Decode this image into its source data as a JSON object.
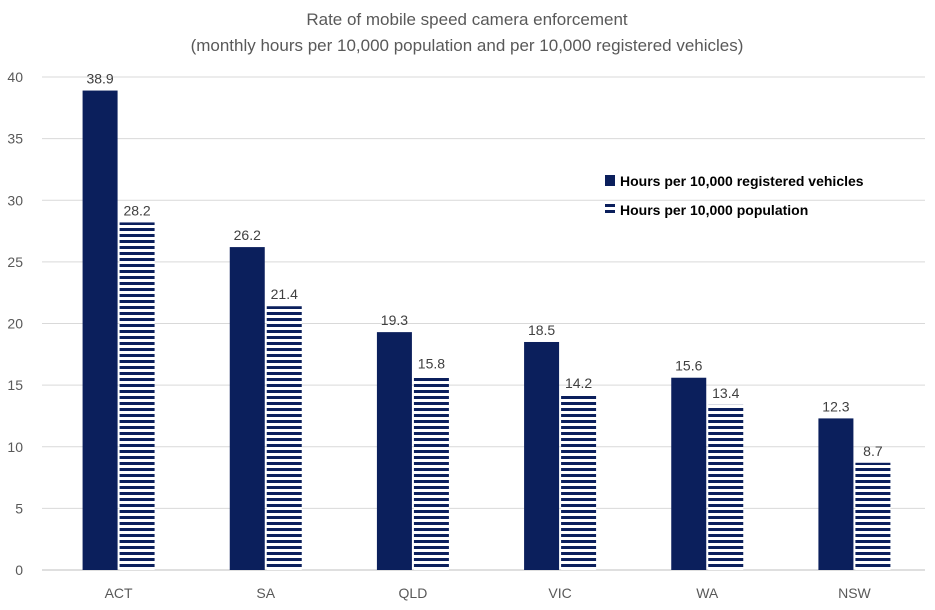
{
  "chart_data": {
    "type": "bar",
    "title": "Rate of mobile speed camera enforcement",
    "subtitle": "(monthly hours per 10,000 population and per 10,000 registered vehicles)",
    "xlabel": "",
    "ylabel": "",
    "ylim": [
      0,
      40
    ],
    "yticks": [
      0,
      5,
      10,
      15,
      20,
      25,
      30,
      35,
      40
    ],
    "grid": true,
    "legend_position": "right",
    "categories": [
      "ACT",
      "SA",
      "QLD",
      "VIC",
      "WA",
      "NSW"
    ],
    "series": [
      {
        "name": "Hours per 10,000 registered vehicles",
        "values": [
          38.9,
          26.2,
          19.3,
          18.5,
          15.6,
          12.3
        ],
        "color": "#0b1f5c",
        "fill": "solid"
      },
      {
        "name": "Hours per 10,000 population",
        "values": [
          28.2,
          21.4,
          15.8,
          14.2,
          13.4,
          8.7
        ],
        "color": "#0b1f5c",
        "fill": "horizontal-stripes"
      }
    ],
    "data_labels": true
  }
}
